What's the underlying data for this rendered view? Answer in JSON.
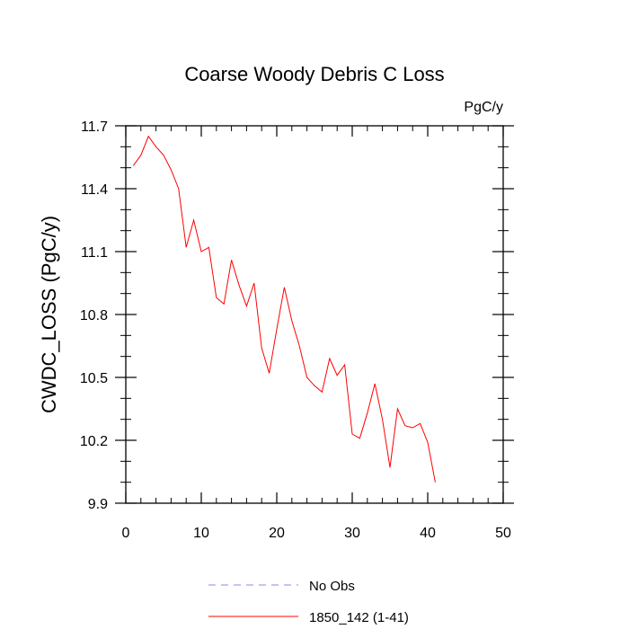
{
  "chart_data": {
    "type": "line",
    "title": "Coarse Woody Debris C Loss",
    "units": "PgC/y",
    "xlabel": "",
    "ylabel": "CWDC_LOSS  (PgC/y)",
    "xlim": [
      0,
      50
    ],
    "ylim": [
      9.9,
      11.7
    ],
    "xticks": [
      0,
      10,
      20,
      30,
      40,
      50
    ],
    "yticks": [
      9.9,
      10.2,
      10.5,
      10.8,
      11.1,
      11.4,
      11.7
    ],
    "grid": false,
    "legend_position": "bottom",
    "series": [
      {
        "name": "1850_142 (1-41)",
        "color": "#ff0000",
        "x": [
          1,
          2,
          3,
          4,
          5,
          6,
          7,
          8,
          9,
          10,
          11,
          12,
          13,
          14,
          15,
          16,
          17,
          18,
          19,
          20,
          21,
          22,
          23,
          24,
          25,
          26,
          27,
          28,
          29,
          30,
          31,
          32,
          33,
          34,
          35,
          36,
          37,
          38,
          39,
          40,
          41
        ],
        "values": [
          11.51,
          11.56,
          11.65,
          11.6,
          11.56,
          11.49,
          11.4,
          11.12,
          11.25,
          11.1,
          11.12,
          10.88,
          10.85,
          11.06,
          10.94,
          10.84,
          10.95,
          10.64,
          10.52,
          10.73,
          10.93,
          10.77,
          10.65,
          10.5,
          10.46,
          10.43,
          10.59,
          10.51,
          10.56,
          10.23,
          10.21,
          10.33,
          10.47,
          10.3,
          10.07,
          10.35,
          10.27,
          10.26,
          10.28,
          10.19,
          10.0
        ]
      }
    ],
    "legend": [
      {
        "label": "No Obs",
        "color": "#8888ee",
        "dash": "8,6"
      },
      {
        "label": "1850_142 (1-41)",
        "color": "#ff0000",
        "dash": ""
      }
    ]
  }
}
